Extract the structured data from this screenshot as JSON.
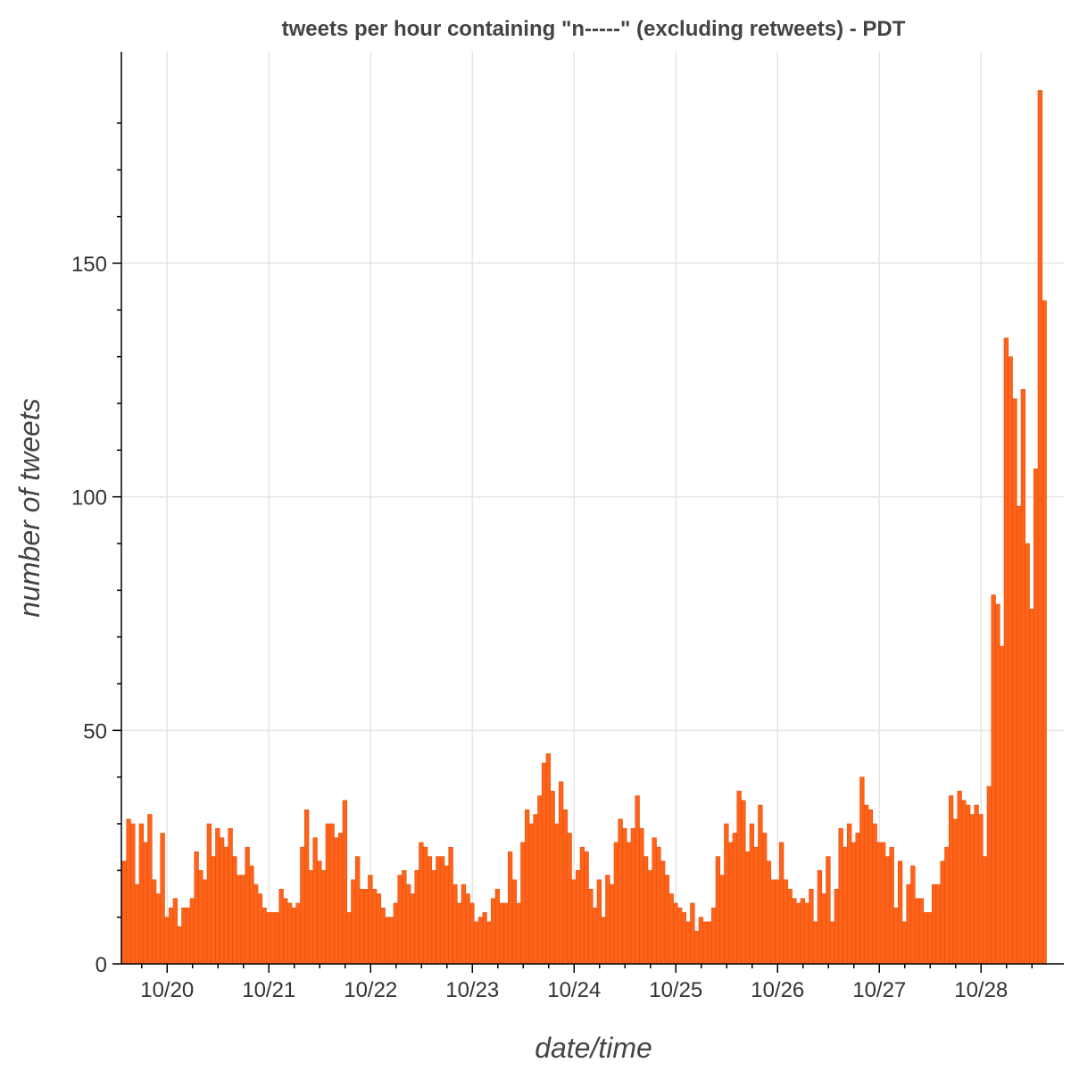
{
  "chart_data": {
    "type": "bar",
    "title": "tweets per hour containing \"n-----\" (excluding retweets) - PDT",
    "xlabel": "date/time",
    "ylabel": "number of tweets",
    "x_start_day": "10/19",
    "x_start_hour": 13,
    "bin": "1 hour",
    "x_ticks": [
      "10/20",
      "10/21",
      "10/22",
      "10/23",
      "10/24",
      "10/25",
      "10/26",
      "10/27",
      "10/28"
    ],
    "y_ticks": [
      0,
      50,
      100,
      150
    ],
    "ylim": [
      0,
      190
    ],
    "grid": true,
    "legend": "none",
    "bar_color": "#ff6319",
    "bar_edge_color": "#e0520f",
    "values": [
      22,
      31,
      30,
      17,
      30,
      26,
      32,
      18,
      15,
      28,
      10,
      12,
      14,
      8,
      12,
      12,
      14,
      24,
      20,
      18,
      30,
      23,
      29,
      27,
      25,
      29,
      23,
      19,
      19,
      25,
      21,
      17,
      15,
      12,
      11,
      11,
      11,
      16,
      14,
      13,
      12,
      13,
      25,
      33,
      20,
      27,
      22,
      20,
      30,
      30,
      27,
      28,
      35,
      11,
      18,
      23,
      16,
      16,
      19,
      16,
      15,
      12,
      10,
      10,
      13,
      19,
      20,
      17,
      15,
      20,
      26,
      25,
      23,
      20,
      23,
      23,
      21,
      25,
      17,
      13,
      17,
      15,
      13,
      9,
      10,
      11,
      9,
      14,
      16,
      13,
      13,
      24,
      18,
      13,
      26,
      33,
      30,
      32,
      36,
      43,
      45,
      37,
      30,
      39,
      33,
      28,
      18,
      20,
      25,
      24,
      16,
      12,
      18,
      10,
      19,
      17,
      26,
      31,
      29,
      26,
      29,
      36,
      29,
      23,
      20,
      27,
      25,
      22,
      19,
      15,
      13,
      12,
      11,
      9,
      13,
      7,
      10,
      9,
      9,
      12,
      23,
      19,
      30,
      26,
      28,
      37,
      35,
      24,
      30,
      25,
      34,
      28,
      22,
      18,
      18,
      26,
      18,
      16,
      14,
      13,
      14,
      13,
      16,
      9,
      20,
      15,
      23,
      9,
      16,
      29,
      25,
      30,
      26,
      28,
      40,
      34,
      33,
      30,
      26,
      26,
      23,
      25,
      12,
      22,
      9,
      17,
      21,
      14,
      14,
      11,
      11,
      17,
      17,
      22,
      25,
      36,
      31,
      37,
      35,
      34,
      32,
      34,
      32,
      23,
      38,
      79,
      77,
      68,
      134,
      130,
      121,
      98,
      123,
      90,
      76,
      106,
      187,
      142
    ]
  }
}
